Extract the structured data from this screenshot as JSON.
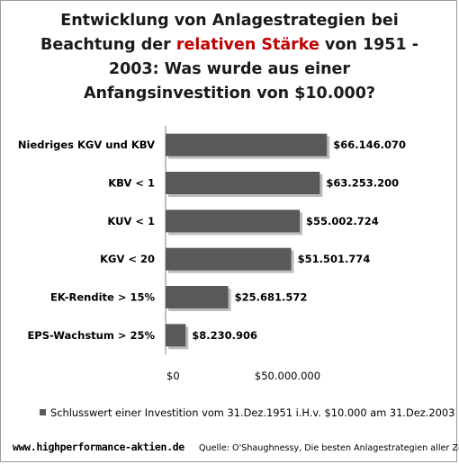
{
  "chart_data": {
    "type": "bar",
    "orientation": "horizontal",
    "title": {
      "before": "Entwicklung von Anlagestrategien bei Beachtung der ",
      "highlight": "relativen Stärke",
      "after": " von 1951 - 2003: Was wurde aus einer Anfangsinvestition von $10.000?",
      "highlight_color": "#c00000"
    },
    "categories": [
      "Niedriges KGV und KBV",
      "KBV < 1",
      "KUV < 1",
      "KGV < 20",
      "EK-Rendite > 15%",
      "EPS-Wachstum > 25%"
    ],
    "series": [
      {
        "name": "Schlusswert einer Investition vom 31.Dez.1951 i.H.v. $10.000 am 31.Dez.2003",
        "values": [
          66146070,
          63253200,
          55002724,
          51501774,
          25681572,
          8230906
        ],
        "labels": [
          "$66.146.070",
          "$63.253.200",
          "$55.002.724",
          "$51.501.774",
          "$25.681.572",
          "$8.230.906"
        ]
      }
    ],
    "x_ticks": [
      {
        "value": 0,
        "label": "$0"
      },
      {
        "value": 50000000,
        "label": "$50.000.000"
      }
    ],
    "xlim": [
      0,
      100000000
    ],
    "legend_position": "bottom",
    "colors": {
      "bar": "#595959",
      "shadow": "#bdbdbd",
      "grid": "#c0c0c0"
    }
  },
  "footer": {
    "url": "www.highperformance-aktien.de",
    "source": "Quelle:  O'Shaughnessy, Die besten Anlagestrategien aller Zeiten"
  }
}
